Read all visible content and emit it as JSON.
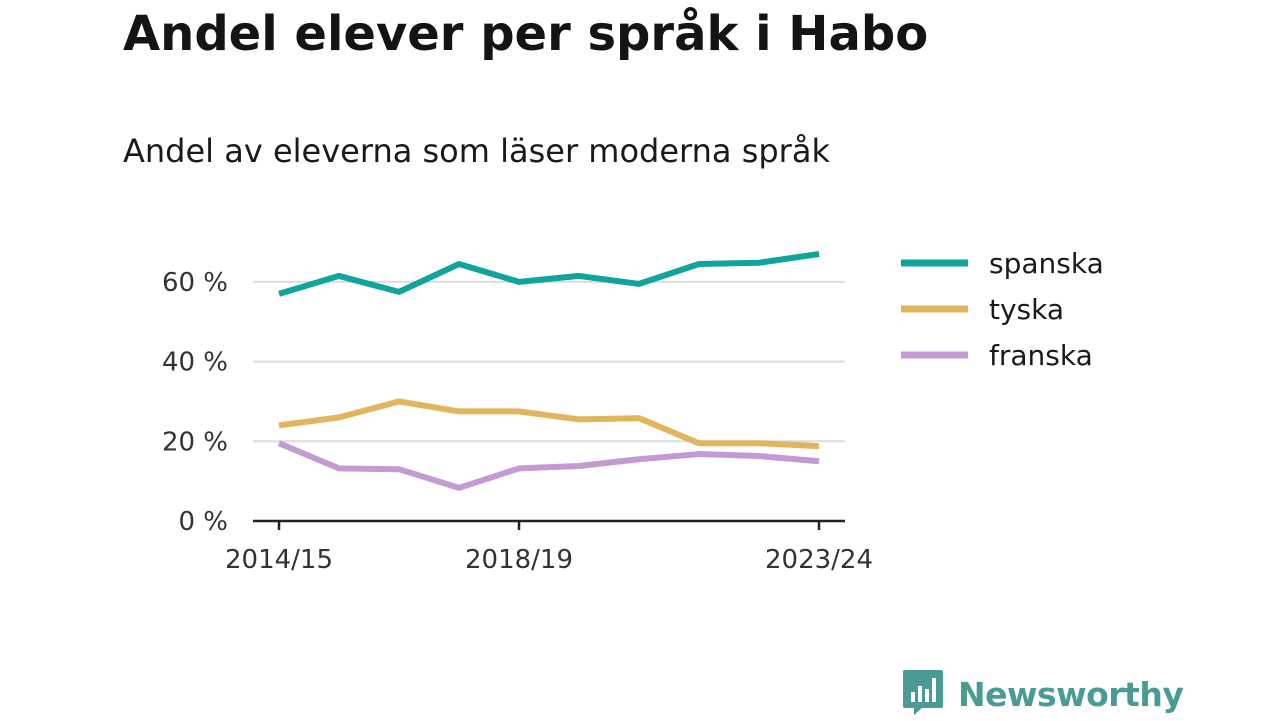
{
  "header": {
    "title": "Andel elever per språk i Habo",
    "subtitle": "Andel av eleverna som läser moderna språk"
  },
  "brand": {
    "name": "Newsworthy",
    "color": "#4a9b94",
    "icon": "bar-chart-speech-bubble-icon"
  },
  "chart_data": {
    "type": "line",
    "title": "Andel elever per språk i Habo",
    "subtitle": "Andel av eleverna som läser moderna språk",
    "xlabel": "",
    "ylabel": "",
    "x": [
      "2014/15",
      "2015/16",
      "2016/17",
      "2017/18",
      "2018/19",
      "2019/20",
      "2020/21",
      "2021/22",
      "2022/23",
      "2023/24"
    ],
    "x_tick_labels": [
      "2014/15",
      "2018/19",
      "2023/24"
    ],
    "y_ticks": [
      0,
      20,
      40,
      60
    ],
    "y_tick_labels": [
      "0 %",
      "20 %",
      "40 %",
      "60 %"
    ],
    "ylim": [
      0,
      70
    ],
    "grid": true,
    "legend_position": "right",
    "series": [
      {
        "name": "spanska",
        "color": "#10a49a",
        "values": [
          57.0,
          61.5,
          57.5,
          64.5,
          60.0,
          61.5,
          59.5,
          64.5,
          64.8,
          67.0
        ]
      },
      {
        "name": "tyska",
        "color": "#e0b55e",
        "values": [
          24.0,
          26.0,
          30.0,
          27.5,
          27.5,
          25.5,
          25.8,
          19.5,
          19.5,
          18.8
        ]
      },
      {
        "name": "franska",
        "color": "#c39bd3",
        "values": [
          19.5,
          13.2,
          13.0,
          8.3,
          13.2,
          13.8,
          15.5,
          16.8,
          16.3,
          15.0
        ]
      }
    ]
  }
}
